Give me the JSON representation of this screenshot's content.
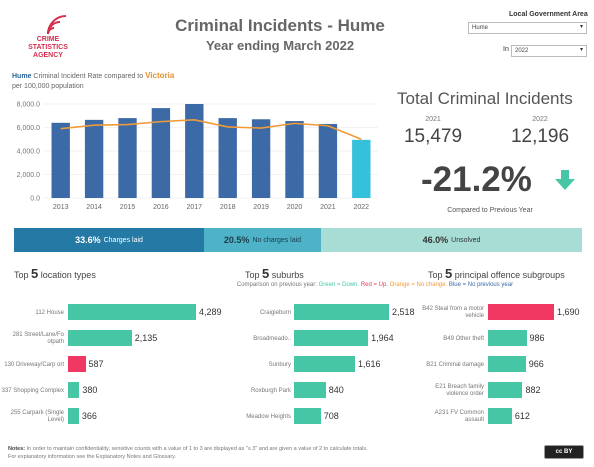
{
  "colors": {
    "teal": "#46c6a5",
    "red": "#f03862",
    "blue": "#3b6aa6",
    "light_blue": "#35c0dc",
    "orange": "#f09a38",
    "charges": "#2479a5",
    "nocharges": "#4fb3c8",
    "unsolved": "#a7ddd5"
  },
  "logo": {
    "line1": "CRIME",
    "line2": "STATISTICS",
    "line3": "AGENCY"
  },
  "header": {
    "title": "Criminal Incidents - Hume",
    "subtitle": "Year ending March 2022"
  },
  "filters": {
    "lga_label": "Local Government Area",
    "lga_value": "Hume",
    "in_label": "In",
    "year_value": "2022"
  },
  "rate_chart": {
    "area": "Hume",
    "heading_mid": "Criminal Incident Rate",
    "compared": "compared to",
    "comparison_area": "Victoria",
    "sub": "per 100,000 population",
    "y_ticks": [
      "8,000.0",
      "6,000.0",
      "4,000.0",
      "2,000.0",
      "0.0"
    ]
  },
  "chart_data": {
    "type": "bar",
    "categories": [
      "2013",
      "2014",
      "2015",
      "2016",
      "2017",
      "2018",
      "2019",
      "2020",
      "2021",
      "2022"
    ],
    "series": [
      {
        "name": "Hume",
        "values": [
          6400,
          6650,
          6800,
          7650,
          8000,
          6800,
          6700,
          6550,
          6300,
          4950
        ]
      },
      {
        "name": "Victoria",
        "values": [
          5900,
          6200,
          6250,
          6500,
          6650,
          6050,
          5950,
          6350,
          6150,
          5000
        ]
      }
    ],
    "ylim": [
      0,
      8000
    ]
  },
  "total": {
    "title": "Total Criminal Incidents",
    "year1": "2021",
    "value1": "15,479",
    "year2": "2022",
    "value2": "12,196",
    "pct": "-21.2%",
    "compare_label": "Compared to Previous Year"
  },
  "outcomes": [
    {
      "pct": "33.6%",
      "label": "Charges laid",
      "share": 0.336
    },
    {
      "pct": "20.5%",
      "label": "No charges laid",
      "share": 0.205
    },
    {
      "pct": "46.0%",
      "label": "Unsolved",
      "share": 0.46
    }
  ],
  "locations": {
    "prefix": "Top",
    "num": "5",
    "title": "location types",
    "items": [
      {
        "label": "112 House",
        "value": "4,289",
        "n": 4289,
        "color": "teal"
      },
      {
        "label": "281 Street/Lane/Fo otpath",
        "value": "2,135",
        "n": 2135,
        "color": "teal"
      },
      {
        "label": "130 Driveway/Carp ort",
        "value": "587",
        "n": 587,
        "color": "red"
      },
      {
        "label": "337 Shopping Complex",
        "value": "380",
        "n": 380,
        "color": "teal"
      },
      {
        "label": "255 Carpark (Single Level)",
        "value": "366",
        "n": 366,
        "color": "teal"
      }
    ]
  },
  "suburbs": {
    "prefix": "Top",
    "num": "5",
    "title": "suburbs",
    "items": [
      {
        "label": "Craigieburn",
        "value": "2,518",
        "n": 2518,
        "color": "teal"
      },
      {
        "label": "Broadmeado..",
        "value": "1,964",
        "n": 1964,
        "color": "teal"
      },
      {
        "label": "Sunbury",
        "value": "1,616",
        "n": 1616,
        "color": "teal"
      },
      {
        "label": "Roxburgh Park",
        "value": "840",
        "n": 840,
        "color": "teal"
      },
      {
        "label": "Meadow Heights",
        "value": "708",
        "n": 708,
        "color": "teal"
      }
    ]
  },
  "offences": {
    "prefix": "Top",
    "num": "5",
    "title": "principal offence subgroups",
    "items": [
      {
        "label": "B42 Steal from a motor vehicle",
        "value": "1,690",
        "n": 1690,
        "color": "red"
      },
      {
        "label": "B49 Other theft",
        "value": "986",
        "n": 986,
        "color": "teal"
      },
      {
        "label": "B21 Criminal damage",
        "value": "966",
        "n": 966,
        "color": "teal"
      },
      {
        "label": "E21 Breach family violence order",
        "value": "882",
        "n": 882,
        "color": "teal"
      },
      {
        "label": "A231 FV Common assault",
        "value": "612",
        "n": 612,
        "color": "teal"
      }
    ]
  },
  "legend": {
    "prefix": "Comparison on previous year:",
    "green": "Green = Down.",
    "red": "Red = Up.",
    "orange": "Orange = No change.",
    "blue": "Blue = No previous year"
  },
  "notes": {
    "label": "Notes:",
    "line1": "In order to maintain confidentiality, sensitive counts with a value of 1 to 3 are displayed as \"≤ 3\" and are given a value of 2 to calculate totals.",
    "line2": "For explanatory information see the Explanatory Notes and Glossary."
  },
  "license": {
    "text": "cc BY"
  }
}
